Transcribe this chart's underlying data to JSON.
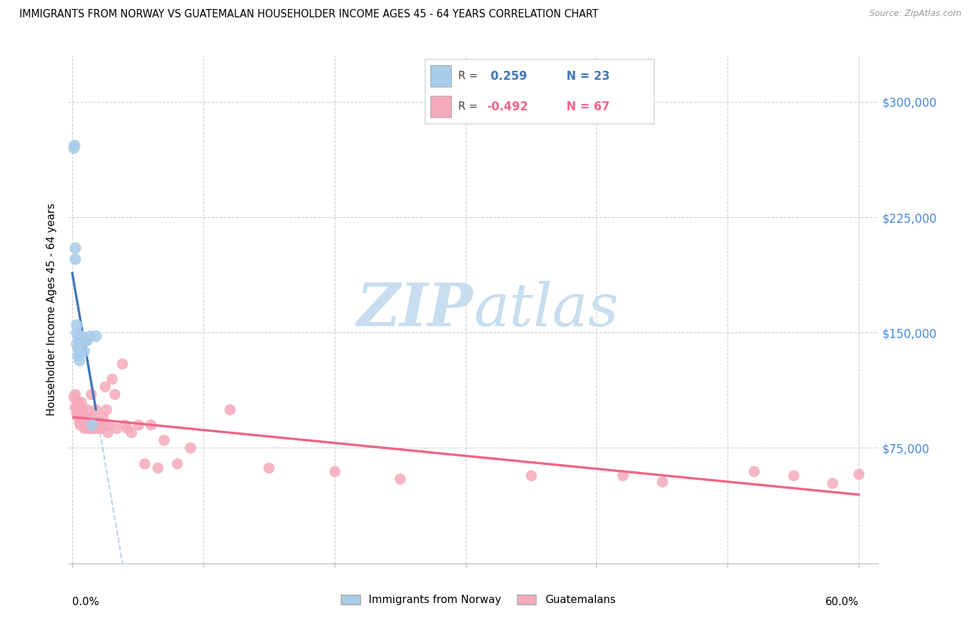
{
  "title": "IMMIGRANTS FROM NORWAY VS GUATEMALAN HOUSEHOLDER INCOME AGES 45 - 64 YEARS CORRELATION CHART",
  "source": "Source: ZipAtlas.com",
  "ylabel": "Householder Income Ages 45 - 64 years",
  "ylim": [
    0,
    330000
  ],
  "xlim": [
    -0.003,
    0.615
  ],
  "yticks": [
    75000,
    150000,
    225000,
    300000
  ],
  "ytick_labels": [
    "$75,000",
    "$150,000",
    "$225,000",
    "$300,000"
  ],
  "xticks": [
    0.0,
    0.1,
    0.2,
    0.3,
    0.4,
    0.5,
    0.6
  ],
  "norway_color": "#A8CCEA",
  "guatemalan_color": "#F5AABB",
  "norway_line_color": "#4477BB",
  "guatemalan_line_color": "#EE6688",
  "trend_dash_color": "#AACCEE",
  "background_color": "#FFFFFF",
  "norway_x": [
    0.001,
    0.0015,
    0.002,
    0.002,
    0.003,
    0.003,
    0.003,
    0.004,
    0.004,
    0.004,
    0.005,
    0.005,
    0.005,
    0.006,
    0.006,
    0.007,
    0.008,
    0.009,
    0.01,
    0.011,
    0.013,
    0.015,
    0.018
  ],
  "norway_y": [
    270000,
    272000,
    205000,
    198000,
    155000,
    150000,
    143000,
    148000,
    140000,
    135000,
    145000,
    138000,
    132000,
    148000,
    138000,
    148000,
    145000,
    138000,
    145000,
    145000,
    148000,
    90000,
    148000
  ],
  "guatemalan_x": [
    0.001,
    0.002,
    0.002,
    0.003,
    0.003,
    0.004,
    0.004,
    0.005,
    0.005,
    0.005,
    0.006,
    0.006,
    0.007,
    0.007,
    0.008,
    0.008,
    0.009,
    0.009,
    0.01,
    0.01,
    0.011,
    0.011,
    0.012,
    0.012,
    0.013,
    0.013,
    0.014,
    0.015,
    0.015,
    0.016,
    0.017,
    0.018,
    0.019,
    0.02,
    0.021,
    0.022,
    0.023,
    0.024,
    0.025,
    0.026,
    0.027,
    0.028,
    0.03,
    0.032,
    0.034,
    0.038,
    0.04,
    0.042,
    0.045,
    0.05,
    0.055,
    0.06,
    0.065,
    0.07,
    0.08,
    0.09,
    0.12,
    0.15,
    0.2,
    0.25,
    0.35,
    0.42,
    0.45,
    0.52,
    0.55,
    0.58,
    0.6
  ],
  "guatemalan_y": [
    108000,
    110000,
    102000,
    100000,
    98000,
    105000,
    95000,
    100000,
    95000,
    92000,
    98000,
    90000,
    105000,
    92000,
    100000,
    90000,
    95000,
    88000,
    95000,
    90000,
    100000,
    90000,
    95000,
    88000,
    90000,
    88000,
    110000,
    95000,
    88000,
    90000,
    88000,
    100000,
    90000,
    88000,
    92000,
    88000,
    95000,
    90000,
    115000,
    100000,
    85000,
    90000,
    120000,
    110000,
    88000,
    130000,
    90000,
    88000,
    85000,
    90000,
    65000,
    90000,
    62000,
    80000,
    65000,
    75000,
    100000,
    62000,
    60000,
    55000,
    57000,
    57000,
    53000,
    60000,
    57000,
    52000,
    58000
  ]
}
